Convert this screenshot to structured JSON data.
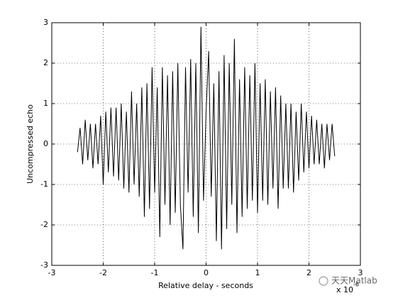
{
  "chart_data": {
    "type": "line",
    "xlabel": "Relative delay - seconds",
    "ylabel": "Uncompressed echo",
    "x_scale_base": "x 10",
    "x_scale_exponent": "-6",
    "watermark": "天天Matlab",
    "grid": true,
    "xlim": [
      -3,
      3
    ],
    "ylim": [
      -3,
      3
    ],
    "xticks": [
      -3,
      -2,
      -1,
      0,
      1,
      2,
      3
    ],
    "yticks": [
      -3,
      -2,
      -1,
      0,
      1,
      2,
      3
    ],
    "series": [
      {
        "color": "#000000",
        "x": [
          -2.5,
          -2.45,
          -2.4,
          -2.35,
          -2.3,
          -2.25,
          -2.2,
          -2.15,
          -2.1,
          -2.05,
          -2.0,
          -1.95,
          -1.9,
          -1.85,
          -1.8,
          -1.75,
          -1.7,
          -1.65,
          -1.6,
          -1.55,
          -1.5,
          -1.45,
          -1.4,
          -1.35,
          -1.3,
          -1.25,
          -1.2,
          -1.15,
          -1.1,
          -1.05,
          -1.0,
          -0.95,
          -0.9,
          -0.85,
          -0.8,
          -0.75,
          -0.7,
          -0.65,
          -0.6,
          -0.55,
          -0.5,
          -0.45,
          -0.4,
          -0.35,
          -0.3,
          -0.25,
          -0.2,
          -0.15,
          -0.1,
          -0.05,
          0.0,
          0.05,
          0.1,
          0.15,
          0.2,
          0.25,
          0.3,
          0.35,
          0.4,
          0.45,
          0.5,
          0.55,
          0.6,
          0.65,
          0.7,
          0.75,
          0.8,
          0.85,
          0.9,
          0.95,
          1.0,
          1.05,
          1.1,
          1.15,
          1.2,
          1.25,
          1.3,
          1.35,
          1.4,
          1.45,
          1.5,
          1.55,
          1.6,
          1.65,
          1.7,
          1.75,
          1.8,
          1.85,
          1.9,
          1.95,
          2.0,
          2.05,
          2.1,
          2.15,
          2.2,
          2.25,
          2.3,
          2.35,
          2.4,
          2.45,
          2.5
        ],
        "values": [
          -0.2,
          0.4,
          -0.5,
          0.6,
          -0.4,
          0.5,
          -0.6,
          0.5,
          -0.5,
          0.7,
          -1.0,
          0.8,
          -0.7,
          0.9,
          -0.8,
          0.9,
          -0.9,
          1.0,
          -1.1,
          0.8,
          -1.2,
          1.3,
          -1.0,
          1.0,
          -1.3,
          1.4,
          -1.8,
          1.5,
          -1.6,
          1.9,
          -1.2,
          1.4,
          -2.3,
          1.9,
          -1.5,
          1.7,
          -2.0,
          1.8,
          -1.7,
          2.0,
          -1.5,
          -2.6,
          1.9,
          -1.2,
          2.1,
          -1.8,
          2.0,
          -2.2,
          2.9,
          -1.4,
          0.8,
          2.3,
          -1.3,
          1.5,
          -2.4,
          1.8,
          -2.6,
          2.2,
          -2.1,
          2.0,
          -1.5,
          2.6,
          -2.2,
          1.6,
          -1.8,
          1.9,
          -1.6,
          1.7,
          -1.4,
          2.0,
          -1.7,
          1.5,
          -1.4,
          1.6,
          -1.5,
          1.3,
          -1.1,
          1.4,
          -1.6,
          1.2,
          -1.1,
          1.0,
          -1.1,
          1.0,
          -1.2,
          0.8,
          -0.9,
          1.0,
          -0.7,
          0.8,
          -0.6,
          0.7,
          -0.5,
          0.6,
          -0.5,
          0.5,
          -0.6,
          0.5,
          -0.4,
          0.5,
          -0.3
        ]
      }
    ]
  }
}
